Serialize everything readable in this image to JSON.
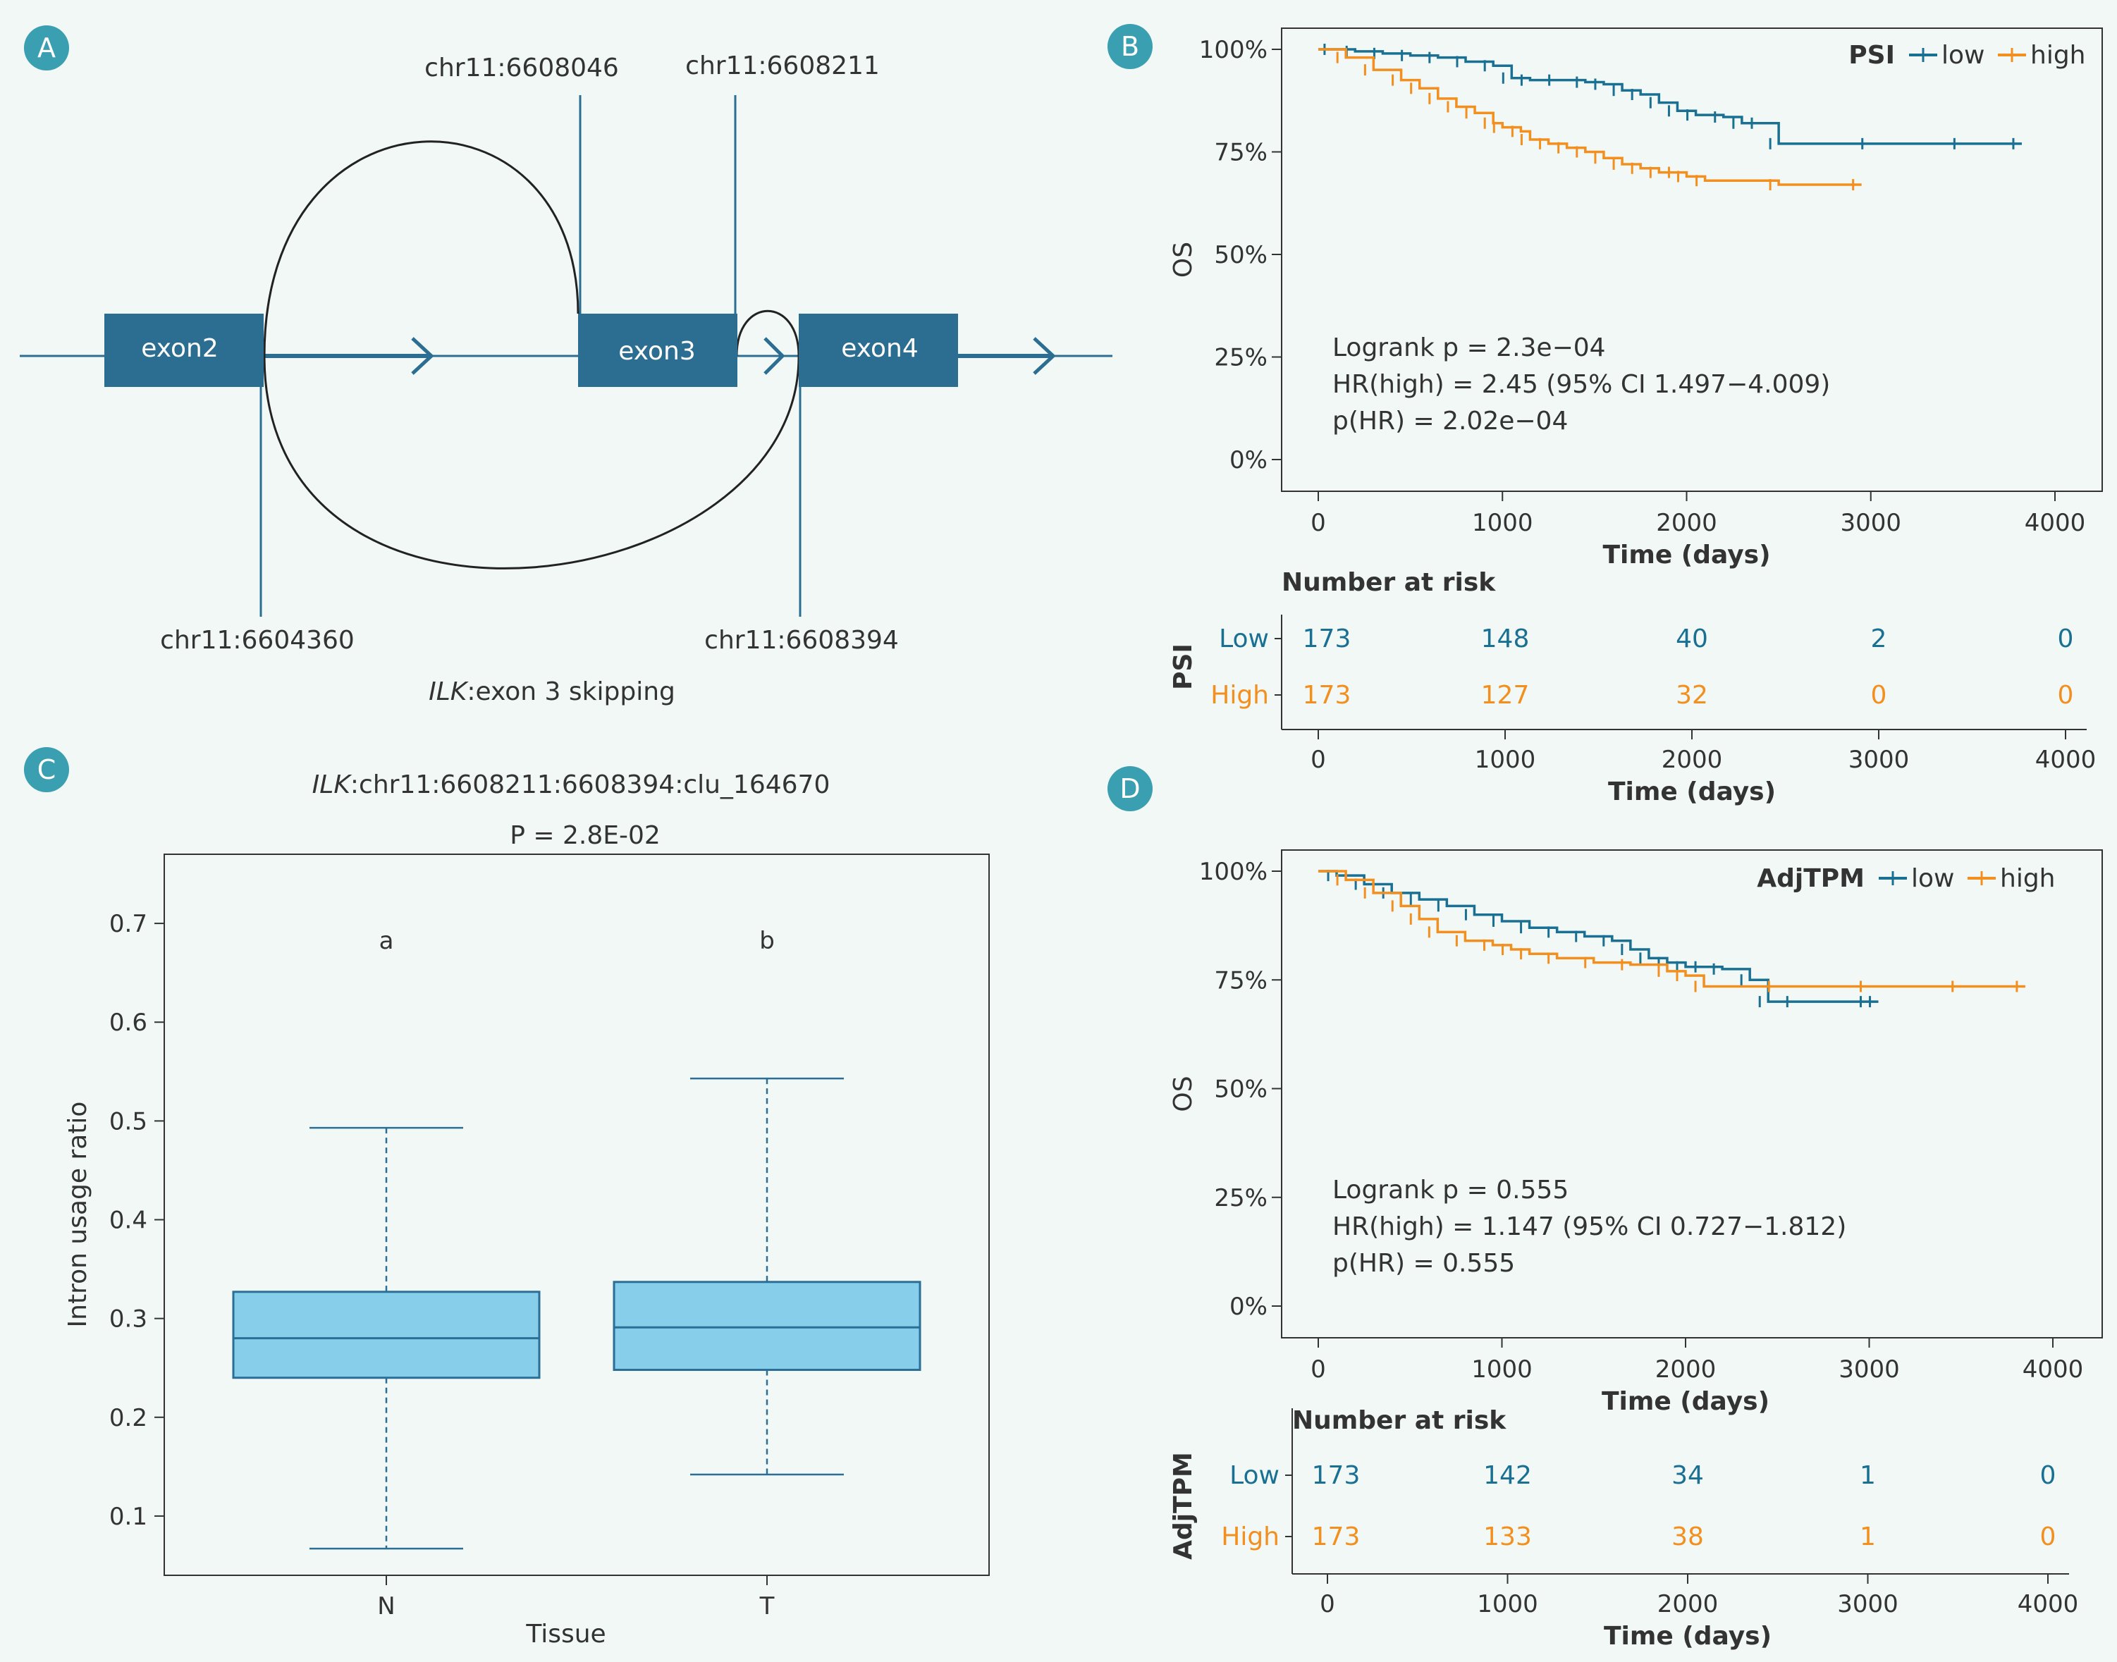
{
  "panels": {
    "a": "A",
    "b": "B",
    "c": "C",
    "d": "D"
  },
  "colors": {
    "low": "#1a7092",
    "high": "#f28f1e",
    "exon": "#2c6e91",
    "box": "#86ceea",
    "box_edge": "#2b6e96"
  },
  "panelA": {
    "exons": [
      "exon2",
      "exon3",
      "exon4"
    ],
    "coords": {
      "c1": "chr11:6608046",
      "c2": "chr11:6608211",
      "c3": "chr11:6604360",
      "c4": "chr11:6608394"
    },
    "caption_gene": "ILK",
    "caption_text": ":exon 3 skipping"
  },
  "chart_data": [
    {
      "id": "C",
      "type": "box",
      "title_gene": "ILK",
      "title_rest": ":chr11:6608211:6608394:clu_164670",
      "subtitle": "P = 2.8E-02",
      "xlabel": "Tissue",
      "ylabel": "Intron usage ratio",
      "categories": [
        "N",
        "T"
      ],
      "letters": [
        "a",
        "b"
      ],
      "ylim": [
        0.04,
        0.77
      ],
      "yticks": [
        0.1,
        0.2,
        0.3,
        0.4,
        0.5,
        0.6,
        0.7
      ],
      "boxes": [
        {
          "min": 0.067,
          "q1": 0.24,
          "median": 0.28,
          "q3": 0.327,
          "max": 0.493
        },
        {
          "min": 0.142,
          "q1": 0.248,
          "median": 0.291,
          "q3": 0.337,
          "max": 0.543
        }
      ]
    },
    {
      "id": "B",
      "type": "line",
      "legend_title": "PSI",
      "legend": [
        "low",
        "high"
      ],
      "xlabel": "Time (days)",
      "ylabel": "OS",
      "xlim": [
        0,
        4000
      ],
      "xticks": [
        0,
        1000,
        2000,
        3000,
        4000
      ],
      "ylim": [
        0,
        1
      ],
      "yticks": [
        "0%",
        "25%",
        "50%",
        "75%",
        "100%"
      ],
      "stats": [
        "Logrank p = 2.3e−04",
        "HR(high) = 2.45 (95% CI 1.497−4.009)",
        "p(HR) = 2.02e−04"
      ],
      "series": [
        {
          "name": "low",
          "x": [
            0,
            80,
            200,
            350,
            500,
            650,
            800,
            950,
            1050,
            1150,
            1300,
            1450,
            1550,
            1650,
            1750,
            1850,
            1950,
            2050,
            2200,
            2300,
            2400,
            2500,
            3000,
            3500,
            3820
          ],
          "y": [
            1,
            1,
            0.995,
            0.99,
            0.985,
            0.98,
            0.97,
            0.96,
            0.93,
            0.925,
            0.925,
            0.92,
            0.915,
            0.9,
            0.89,
            0.87,
            0.85,
            0.84,
            0.835,
            0.82,
            0.82,
            0.77,
            0.77,
            0.77,
            0.77
          ]
        },
        {
          "name": "high",
          "x": [
            0,
            150,
            300,
            450,
            550,
            650,
            750,
            850,
            950,
            1000,
            1100,
            1150,
            1250,
            1350,
            1450,
            1550,
            1650,
            1750,
            1850,
            1950,
            2000,
            2100,
            2500,
            2950
          ],
          "y": [
            1,
            0.98,
            0.95,
            0.925,
            0.905,
            0.88,
            0.86,
            0.845,
            0.82,
            0.81,
            0.8,
            0.78,
            0.77,
            0.76,
            0.75,
            0.735,
            0.72,
            0.71,
            0.7,
            0.7,
            0.69,
            0.68,
            0.67,
            0.67
          ]
        }
      ]
    },
    {
      "id": "B-risk",
      "type": "table",
      "title": "Number at risk",
      "ylabel": "PSI",
      "xlabel": "Time (days)",
      "xticks": [
        0,
        1000,
        2000,
        3000,
        4000
      ],
      "rows": [
        {
          "name": "Low",
          "values": [
            173,
            148,
            40,
            2,
            0
          ]
        },
        {
          "name": "High",
          "values": [
            173,
            127,
            32,
            0,
            0
          ]
        }
      ]
    },
    {
      "id": "D",
      "type": "line",
      "legend_title": "AdjTPM",
      "legend": [
        "low",
        "high"
      ],
      "xlabel": "Time (days)",
      "ylabel": "OS",
      "xlim": [
        0,
        4000
      ],
      "xticks": [
        0,
        1000,
        2000,
        3000,
        4000
      ],
      "ylim": [
        0,
        1
      ],
      "yticks": [
        "0%",
        "25%",
        "50%",
        "75%",
        "100%"
      ],
      "stats": [
        "Logrank p = 0.555",
        "HR(high) = 1.147 (95% CI 0.727−1.812)",
        "p(HR) = 0.555"
      ],
      "series": [
        {
          "name": "low",
          "x": [
            0,
            100,
            250,
            400,
            550,
            700,
            850,
            1000,
            1150,
            1300,
            1450,
            1600,
            1700,
            1800,
            1900,
            2000,
            2100,
            2200,
            2350,
            2450,
            2600,
            3000,
            3050
          ],
          "y": [
            1,
            0.99,
            0.97,
            0.95,
            0.935,
            0.92,
            0.9,
            0.885,
            0.87,
            0.86,
            0.85,
            0.84,
            0.82,
            0.8,
            0.79,
            0.78,
            0.78,
            0.775,
            0.75,
            0.7,
            0.7,
            0.7,
            0.7
          ]
        },
        {
          "name": "high",
          "x": [
            0,
            150,
            300,
            450,
            550,
            650,
            800,
            950,
            1050,
            1150,
            1300,
            1500,
            1700,
            1900,
            2000,
            2100,
            2500,
            3000,
            3500,
            3850
          ],
          "y": [
            1,
            0.98,
            0.95,
            0.92,
            0.89,
            0.86,
            0.84,
            0.83,
            0.82,
            0.81,
            0.8,
            0.79,
            0.785,
            0.77,
            0.76,
            0.735,
            0.735,
            0.735,
            0.735,
            0.735
          ]
        }
      ]
    },
    {
      "id": "D-risk",
      "type": "table",
      "title": "Number at risk",
      "ylabel": "AdjTPM",
      "xlabel": "Time (days)",
      "xticks": [
        0,
        1000,
        2000,
        3000,
        4000
      ],
      "rows": [
        {
          "name": "Low",
          "values": [
            173,
            142,
            34,
            1,
            0
          ]
        },
        {
          "name": "High",
          "values": [
            173,
            133,
            38,
            1,
            0
          ]
        }
      ]
    }
  ]
}
